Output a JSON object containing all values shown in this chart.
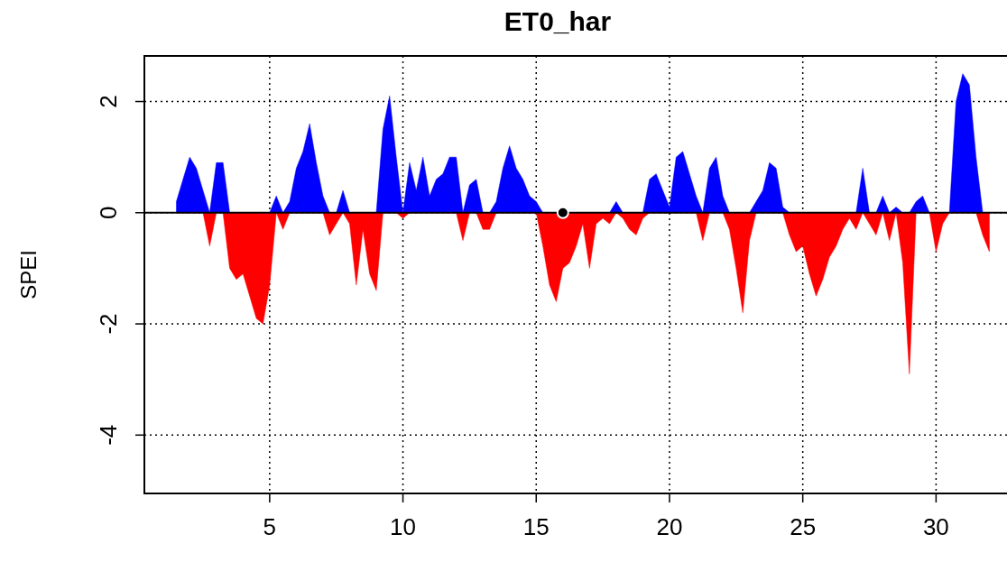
{
  "chart_data": {
    "type": "area",
    "title": "ET0_har",
    "ylabel": "SPEI",
    "xlim": [
      0.3,
      33
    ],
    "xticks": [
      5,
      10,
      15,
      20,
      25,
      30
    ],
    "ylim": [
      -5.05,
      2.82
    ],
    "yticks": [
      -4,
      -2,
      0,
      2
    ],
    "grid": true,
    "x": [
      1.5,
      1.75,
      2,
      2.25,
      2.5,
      2.75,
      3,
      3.25,
      3.5,
      3.75,
      4,
      4.25,
      4.5,
      4.75,
      5,
      5.25,
      5.5,
      5.75,
      6,
      6.25,
      6.5,
      6.75,
      7,
      7.25,
      7.5,
      7.75,
      8,
      8.25,
      8.5,
      8.75,
      9,
      9.25,
      9.5,
      9.75,
      10,
      10.25,
      10.5,
      10.75,
      11,
      11.25,
      11.5,
      11.75,
      12,
      12.25,
      12.5,
      12.75,
      13,
      13.25,
      13.5,
      13.75,
      14,
      14.25,
      14.5,
      14.75,
      15,
      15.25,
      15.5,
      15.75,
      16,
      16.25,
      16.5,
      16.75,
      17,
      17.25,
      17.5,
      17.75,
      18,
      18.25,
      18.5,
      18.75,
      19,
      19.25,
      19.5,
      19.75,
      20,
      20.25,
      20.5,
      20.75,
      21,
      21.25,
      21.5,
      21.75,
      22,
      22.25,
      22.5,
      22.75,
      23,
      23.25,
      23.5,
      23.75,
      24,
      24.25,
      24.5,
      24.75,
      25,
      25.25,
      25.5,
      25.75,
      26,
      26.25,
      26.5,
      26.75,
      27,
      27.25,
      27.5,
      27.75,
      28,
      28.25,
      28.5,
      28.75,
      29,
      29.25,
      29.5,
      29.75,
      30,
      30.25,
      30.5,
      30.75,
      31,
      31.25,
      31.5,
      31.75,
      32
    ],
    "ref_lines": [
      {
        "axis": "y",
        "value": 0,
        "color": "#000000",
        "line_style": "solid"
      }
    ],
    "series": [
      {
        "color": "#0000ff",
        "values": [
          0.2,
          0.6,
          1.0,
          0.8,
          0.4,
          0,
          0.9,
          0.9,
          0,
          0,
          0,
          0,
          0,
          0,
          0,
          0.3,
          0,
          0.2,
          0.8,
          1.1,
          1.6,
          0.9,
          0.3,
          0,
          0,
          0.4,
          0,
          0,
          0,
          0,
          0,
          1.5,
          2.1,
          1.0,
          0,
          0.9,
          0.4,
          1.0,
          0.3,
          0.6,
          0.7,
          1.0,
          1.0,
          0,
          0.5,
          0.6,
          0,
          0,
          0.2,
          0.8,
          1.2,
          0.8,
          0.6,
          0.3,
          0.2,
          0,
          0,
          0,
          0,
          0,
          0,
          0,
          0,
          0,
          0,
          0,
          0.2,
          0,
          0,
          0,
          0,
          0.6,
          0.7,
          0.4,
          0.1,
          1.0,
          1.1,
          0.7,
          0.3,
          0,
          0.8,
          1.0,
          0.3,
          0,
          0,
          0,
          0,
          0.2,
          0.4,
          0.9,
          0.8,
          0.1,
          0,
          0,
          0,
          0,
          0,
          0,
          0,
          0,
          0,
          0,
          0,
          0.8,
          0,
          0,
          0.3,
          0,
          0.1,
          0,
          0,
          0.2,
          0.3,
          0,
          0,
          0,
          0,
          2.0,
          2.5,
          2.3,
          1.0,
          0,
          0
        ]
      },
      {
        "color": "#ff0000",
        "values": [
          0,
          0,
          0,
          0,
          0,
          -0.6,
          0,
          0,
          -1.0,
          -1.2,
          -1.1,
          -1.5,
          -1.9,
          -2.0,
          -1.3,
          0,
          -0.3,
          0,
          0,
          0,
          0,
          0,
          0,
          -0.4,
          -0.2,
          0,
          -0.2,
          -1.3,
          -0.3,
          -1.1,
          -1.4,
          0,
          0,
          0,
          -0.1,
          0,
          0,
          0,
          0,
          0,
          0,
          0,
          0,
          -0.5,
          0,
          0,
          -0.3,
          -0.3,
          0,
          0,
          0,
          0,
          0,
          0,
          0,
          -0.6,
          -1.3,
          -1.6,
          -1.0,
          -0.9,
          -0.6,
          -0.2,
          -1.0,
          -0.2,
          -0.1,
          -0.2,
          0,
          -0.1,
          -0.3,
          -0.4,
          -0.1,
          0,
          0,
          0,
          0,
          0,
          0,
          0,
          0,
          -0.5,
          0,
          0,
          0,
          -0.3,
          -1.0,
          -1.8,
          -0.5,
          0,
          0,
          0,
          0,
          0,
          -0.4,
          -0.7,
          -0.6,
          -1.1,
          -1.5,
          -1.2,
          -0.8,
          -0.6,
          -0.3,
          -0.1,
          -0.3,
          0,
          -0.2,
          -0.4,
          0,
          -0.5,
          0,
          -0.9,
          -2.9,
          0,
          0,
          0,
          -0.7,
          -0.2,
          0,
          0,
          0,
          0,
          0,
          -0.4,
          -0.7
        ]
      },
      {
        "type": "scatter",
        "marker": "circle",
        "color": "#000000",
        "x": [
          16
        ],
        "values": [
          0
        ]
      }
    ]
  }
}
